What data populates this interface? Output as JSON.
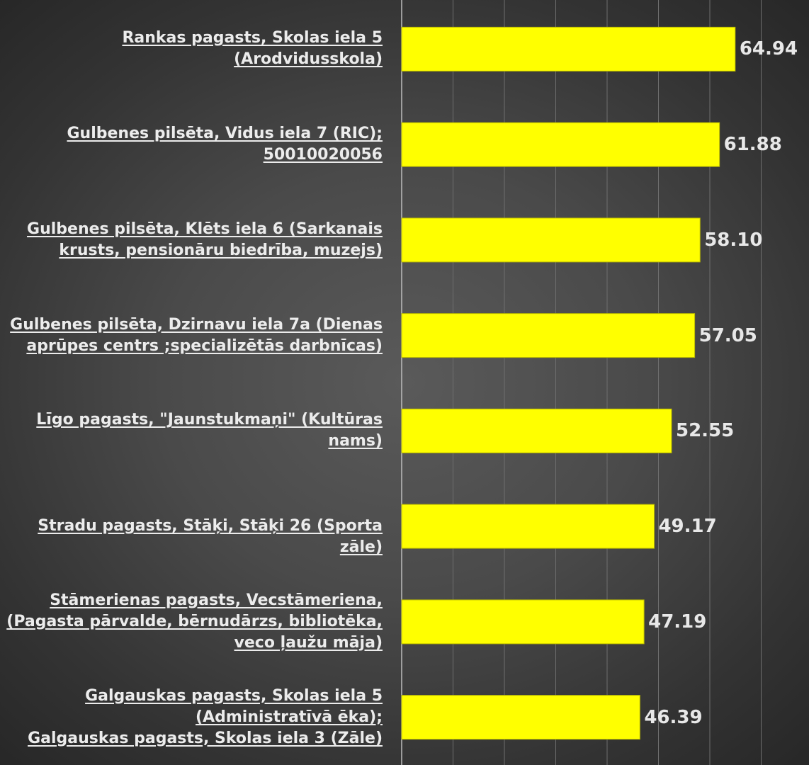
{
  "chart_data": {
    "type": "bar",
    "orientation": "horizontal",
    "categories": [
      "Rankas pagasts, Skolas iela 5\n(Arodvidusskola)",
      "Gulbenes pilsēta, Vidus iela 7 (RIC);\n50010020056",
      "Gulbenes pilsēta, Klēts iela 6  (Sarkanais\nkrusts, pensionāru biedrība, muzejs)",
      "Gulbenes pilsēta, Dzirnavu iela 7a (Dienas\naprūpes centrs ;specializētās darbnīcas)",
      "Līgo pagasts, \"Jaunstukmaņi\" (Kultūras\nnams)",
      "Stradu pagasts, Stāķi, Stāķi 26 (Sporta zāle)",
      "Stāmerienas pagasts, Vecstāmeriena,\n(Pagasta pārvalde, bērnudārzs, bibliotēka,\nveco ļaužu māja)",
      "Galgauskas pagasts, Skolas iela 5\n(Administratīvā ēka);\nGalgauskas pagasts, Skolas iela 3 (Zāle)"
    ],
    "values": [
      64.94,
      61.88,
      58.1,
      57.05,
      52.55,
      49.17,
      47.19,
      46.39
    ],
    "value_labels": [
      "64.94",
      "61.88",
      "58.10",
      "57.05",
      "52.55",
      "49.17",
      "47.19",
      "46.39"
    ],
    "xlim": [
      0,
      80
    ],
    "grid": "vertical",
    "legend": "none",
    "title": "",
    "xlabel": "",
    "ylabel": "",
    "colors": {
      "bar": "#ffff00",
      "bar_stroke": "#b8b800",
      "grid": "#6e6e6e",
      "axis": "#bdbdbd"
    }
  }
}
